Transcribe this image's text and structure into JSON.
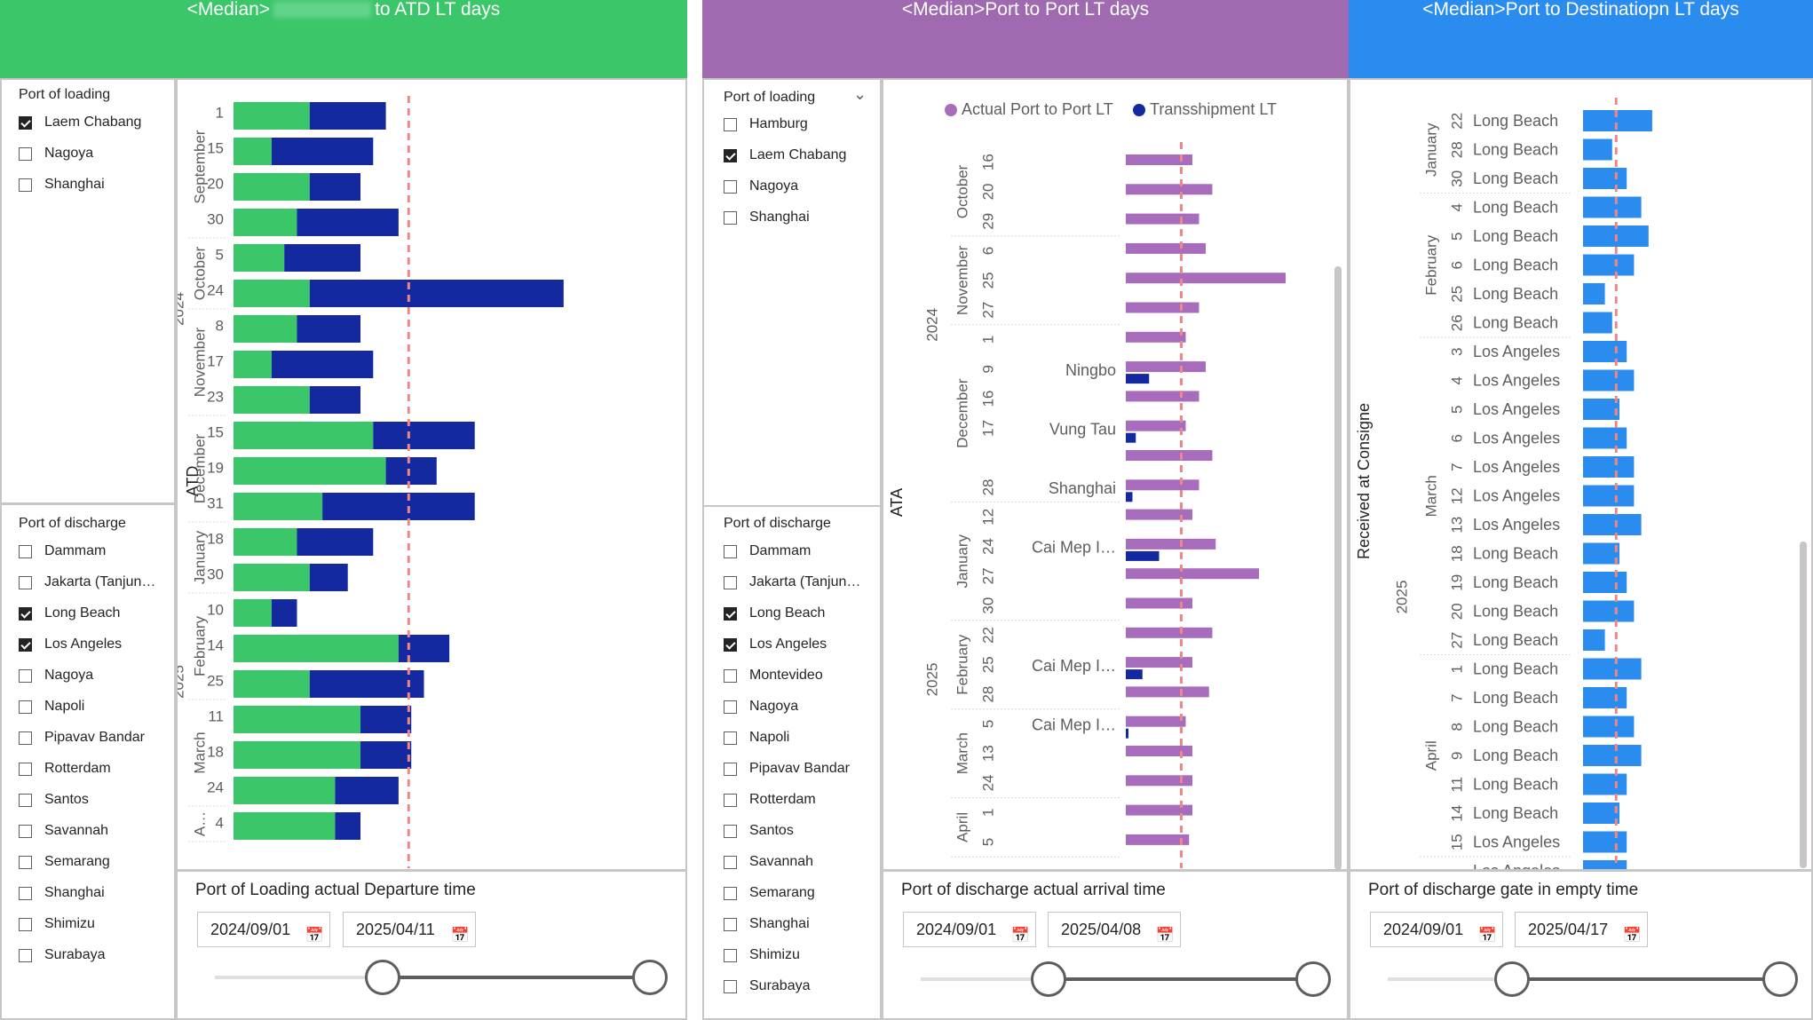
{
  "headers": {
    "chart1": {
      "prefix": "<Median>",
      "suffix": "to ATD LT days",
      "color": "#3cc66a"
    },
    "chart2": {
      "title": "<Median>Port to Port LT days",
      "color": "#a06ab0"
    },
    "chart3": {
      "title": "<Median>Port to Destinatiopn LT days",
      "color": "#2b8cf0"
    }
  },
  "colors": {
    "green": "#3cc66a",
    "navy": "#1428a0",
    "purple": "#a86cbc",
    "blue": "#2b8cf0",
    "ref": "#ee8888"
  },
  "panel1": {
    "loading": {
      "title": "Port of loading",
      "items": [
        {
          "label": "Laem Chabang",
          "checked": true
        },
        {
          "label": "Nagoya",
          "checked": false
        },
        {
          "label": "Shanghai",
          "checked": false
        }
      ]
    },
    "discharge": {
      "title": "Port of discharge",
      "items": [
        {
          "label": "Dammam",
          "checked": false
        },
        {
          "label": "Jakarta (Tanjun…",
          "checked": false
        },
        {
          "label": "Long Beach",
          "checked": true
        },
        {
          "label": "Los Angeles",
          "checked": true
        },
        {
          "label": "Nagoya",
          "checked": false
        },
        {
          "label": "Napoli",
          "checked": false
        },
        {
          "label": "Pipavav Bandar",
          "checked": false
        },
        {
          "label": "Rotterdam",
          "checked": false
        },
        {
          "label": "Santos",
          "checked": false
        },
        {
          "label": "Savannah",
          "checked": false
        },
        {
          "label": "Semarang",
          "checked": false
        },
        {
          "label": "Shanghai",
          "checked": false
        },
        {
          "label": "Shimizu",
          "checked": false
        },
        {
          "label": "Surabaya",
          "checked": false
        }
      ]
    },
    "daterange": {
      "title": "Port of Loading actual Departure time",
      "start": "2024/09/01",
      "end": "2025/04/11"
    }
  },
  "panel2": {
    "loading": {
      "title": "Port of loading",
      "items": [
        {
          "label": "Hamburg",
          "checked": false
        },
        {
          "label": "Laem Chabang",
          "checked": true
        },
        {
          "label": "Nagoya",
          "checked": false
        },
        {
          "label": "Shanghai",
          "checked": false
        }
      ]
    },
    "discharge": {
      "title": "Port of discharge",
      "items": [
        {
          "label": "Dammam",
          "checked": false
        },
        {
          "label": "Jakarta (Tanjun…",
          "checked": false
        },
        {
          "label": "Long Beach",
          "checked": true
        },
        {
          "label": "Los Angeles",
          "checked": true
        },
        {
          "label": "Montevideo",
          "checked": false
        },
        {
          "label": "Nagoya",
          "checked": false
        },
        {
          "label": "Napoli",
          "checked": false
        },
        {
          "label": "Pipavav Bandar",
          "checked": false
        },
        {
          "label": "Rotterdam",
          "checked": false
        },
        {
          "label": "Santos",
          "checked": false
        },
        {
          "label": "Savannah",
          "checked": false
        },
        {
          "label": "Semarang",
          "checked": false
        },
        {
          "label": "Shanghai",
          "checked": false
        },
        {
          "label": "Shimizu",
          "checked": false
        },
        {
          "label": "Surabaya",
          "checked": false
        }
      ]
    },
    "daterange": {
      "title": "Port of discharge actual arrival time",
      "start": "2024/09/01",
      "end": "2025/04/08"
    }
  },
  "panel3": {
    "daterange": {
      "title": "Port of discharge gate in empty time",
      "start": "2024/09/01",
      "end": "2025/04/17"
    }
  },
  "chart_data": [
    {
      "type": "bar",
      "orientation": "horizontal",
      "stacked": true,
      "axis_title": "ATD",
      "reference_line": 11,
      "xlim": [
        0,
        25
      ],
      "groups": [
        {
          "year": "2024",
          "months": [
            {
              "name": "September",
              "days": [
                "1",
                "15",
                "20",
                "30"
              ]
            },
            {
              "name": "October",
              "days": [
                "5",
                "24"
              ]
            },
            {
              "name": "November",
              "days": [
                "8",
                "17",
                "23"
              ]
            },
            {
              "name": "December",
              "days": [
                "15",
                "19",
                "31"
              ]
            }
          ]
        },
        {
          "year": "2025",
          "months": [
            {
              "name": "January",
              "days": [
                "18",
                "30"
              ]
            },
            {
              "name": "February",
              "days": [
                "10",
                "14",
                "25"
              ]
            },
            {
              "name": "March",
              "days": [
                "11",
                "18",
                "24"
              ]
            },
            {
              "name": "A…",
              "days": [
                "4"
              ]
            }
          ]
        }
      ],
      "series": [
        {
          "name": "green",
          "values": [
            6,
            3,
            6,
            5,
            4,
            6,
            5,
            3,
            6,
            11,
            12,
            7,
            5,
            6,
            3,
            13,
            6,
            10,
            10,
            8,
            8
          ]
        },
        {
          "name": "navy",
          "values": [
            6,
            8,
            4,
            8,
            6,
            20,
            5,
            8,
            4,
            8,
            4,
            12,
            6,
            3,
            2,
            4,
            9,
            4,
            4,
            5,
            2
          ]
        }
      ]
    },
    {
      "type": "bar",
      "orientation": "horizontal",
      "stacked": true,
      "axis_title": "ATA",
      "legend": [
        "Actual Port to Port LT",
        "Transshipment LT"
      ],
      "reference_line": 11,
      "xlim": [
        0,
        25
      ],
      "groups": [
        {
          "year": "2024",
          "months": [
            {
              "name": "October",
              "days": [
                "16",
                "20",
                "29"
              ]
            },
            {
              "name": "November",
              "days": [
                "6",
                "25",
                "27"
              ]
            },
            {
              "name": "December",
              "days": [
                "1",
                "9",
                "16",
                "17",
                "",
                "28"
              ]
            }
          ]
        },
        {
          "year": "2025",
          "months": [
            {
              "name": "January",
              "days": [
                "12",
                "24",
                "27",
                "30"
              ]
            },
            {
              "name": "February",
              "days": [
                "22",
                "25",
                "28"
              ]
            },
            {
              "name": "March",
              "days": [
                "5",
                "13",
                "24"
              ]
            },
            {
              "name": "April",
              "days": [
                "1",
                "5"
              ]
            }
          ]
        }
      ],
      "transship_labels": [
        "",
        "",
        "",
        "",
        "",
        "",
        "",
        "Ningbo",
        "",
        "Vung Tau",
        "",
        "Shanghai",
        "",
        "Cai Mep I…",
        "",
        "",
        "",
        "Cai Mep I…",
        "",
        "Cai Mep I…",
        "",
        "",
        "",
        ""
      ],
      "series": [
        {
          "name": "Actual Port to Port LT",
          "values": [
            10,
            13,
            11,
            12,
            24,
            11,
            9,
            12,
            11,
            9,
            13,
            11,
            10,
            13.5,
            20,
            10,
            13,
            10,
            12.5,
            9,
            10,
            10,
            10,
            9.5
          ]
        },
        {
          "name": "Transshipment LT",
          "values": [
            0,
            0,
            0,
            0,
            0,
            0,
            0,
            3.5,
            0,
            1.5,
            0,
            1,
            0,
            5,
            0,
            0,
            0,
            2.5,
            0,
            0.4,
            0,
            0,
            0,
            0
          ]
        }
      ]
    },
    {
      "type": "bar",
      "orientation": "horizontal",
      "axis_title": "Received at Consigne",
      "reference_line": 6.5,
      "xlim": [
        0,
        30
      ],
      "groups": [
        {
          "year": "",
          "months": [
            {
              "name": "January",
              "days": [
                "22",
                "28",
                "30"
              ]
            },
            {
              "name": "February",
              "days": [
                "4",
                "5",
                "6",
                "25",
                "26"
              ]
            }
          ]
        },
        {
          "year": "2025",
          "months": [
            {
              "name": "March",
              "days": [
                "3",
                "4",
                "5",
                "6",
                "7",
                "12",
                "13",
                "18",
                "19",
                "20",
                "27"
              ]
            },
            {
              "name": "April",
              "days": [
                "1",
                "7",
                "8",
                "9",
                "11",
                "14",
                "15"
              ]
            }
          ]
        }
      ],
      "port_labels": [
        "Long Beach",
        "Long Beach",
        "Long Beach",
        "Long Beach",
        "Long Beach",
        "Long Beach",
        "Long Beach",
        "Long Beach",
        "Los Angeles",
        "Los Angeles",
        "Los Angeles",
        "Los Angeles",
        "Los Angeles",
        "Los Angeles",
        "Los Angeles",
        "Long Beach",
        "Long Beach",
        "Long Beach",
        "Long Beach",
        "Long Beach",
        "Long Beach",
        "Long Beach",
        "Long Beach",
        "Long Beach",
        "Long Beach",
        "Los Angeles",
        "Los Angeles"
      ],
      "values": [
        9.5,
        4,
        6,
        8,
        9,
        7,
        3,
        4,
        6,
        7,
        5,
        6,
        7,
        7,
        8,
        5,
        6,
        7,
        3,
        8,
        6,
        7,
        8,
        6,
        5,
        6,
        6
      ]
    }
  ]
}
